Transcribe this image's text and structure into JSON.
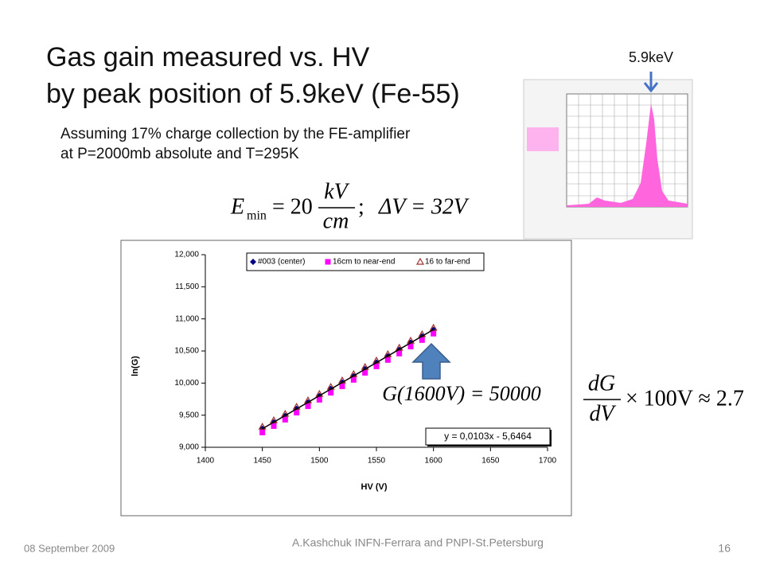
{
  "slide": {
    "title_line_1": "Gas gain measured vs. HV",
    "title_line_2": "by peak position of 5.9keV (Fe-55)",
    "note_line_1": "Assuming 17% charge collection by the FE-amplifier",
    "note_line_2": "at P=2000mb absolute and T=295K",
    "scope_label": "5.9keV",
    "formula_1": {
      "lhs": "E",
      "sub": "min",
      "eq": "= 20",
      "num": "kV",
      "den": "cm",
      "sep": ";",
      "rhs": "ΔV = 32V"
    },
    "formula_2": "G(1600V) = 50000",
    "formula_3": {
      "num": "dG",
      "den": "dV",
      "rhs": "× 100V ≈ 2.7"
    },
    "footer_date": "08 September 2009",
    "footer_author": "A.Kashchuk   INFN-Ferrara and PNPI-St.Petersburg",
    "page_number": "16"
  },
  "chart_data": {
    "type": "scatter",
    "xlabel": "HV (V)",
    "ylabel": "ln(G)",
    "x": [
      1450,
      1460,
      1470,
      1480,
      1490,
      1500,
      1510,
      1520,
      1530,
      1540,
      1550,
      1560,
      1570,
      1580,
      1590,
      1600
    ],
    "series": [
      {
        "name": "#003 (center)",
        "color": "#000080",
        "marker": "diamond",
        "values": [
          9.29,
          9.39,
          9.49,
          9.6,
          9.7,
          9.8,
          9.91,
          10.01,
          10.11,
          10.22,
          10.32,
          10.42,
          10.52,
          10.63,
          10.73,
          10.83
        ]
      },
      {
        "name": "16cm to near-end",
        "color": "#ff00ff",
        "marker": "square",
        "values": [
          9.23,
          9.33,
          9.43,
          9.54,
          9.64,
          9.74,
          9.85,
          9.95,
          10.05,
          10.16,
          10.26,
          10.36,
          10.46,
          10.57,
          10.67,
          10.77
        ]
      },
      {
        "name": "16 to far-end",
        "color": "#a0302c",
        "marker": "triangle",
        "values": [
          9.32,
          9.42,
          9.52,
          9.63,
          9.73,
          9.83,
          9.94,
          10.04,
          10.14,
          10.25,
          10.35,
          10.45,
          10.55,
          10.66,
          10.76,
          10.86
        ]
      }
    ],
    "trendline": {
      "slope": 0.0103,
      "intercept": -5.6464,
      "label": "y = 0,0103x - 5,6464"
    },
    "xlim": [
      1400,
      1700
    ],
    "xticks": [
      1400,
      1450,
      1500,
      1550,
      1600,
      1650,
      1700
    ],
    "ylim": [
      9,
      12
    ],
    "yticks": [
      {
        "value": 9,
        "label": "9,000"
      },
      {
        "value": 9.5,
        "label": "9,500"
      },
      {
        "value": 10,
        "label": "10,000"
      },
      {
        "value": 10.5,
        "label": "10,500"
      },
      {
        "value": 11,
        "label": "11,000"
      },
      {
        "value": 11.5,
        "label": "11,500"
      },
      {
        "value": 12,
        "label": "12,000"
      }
    ],
    "legend": "top"
  }
}
